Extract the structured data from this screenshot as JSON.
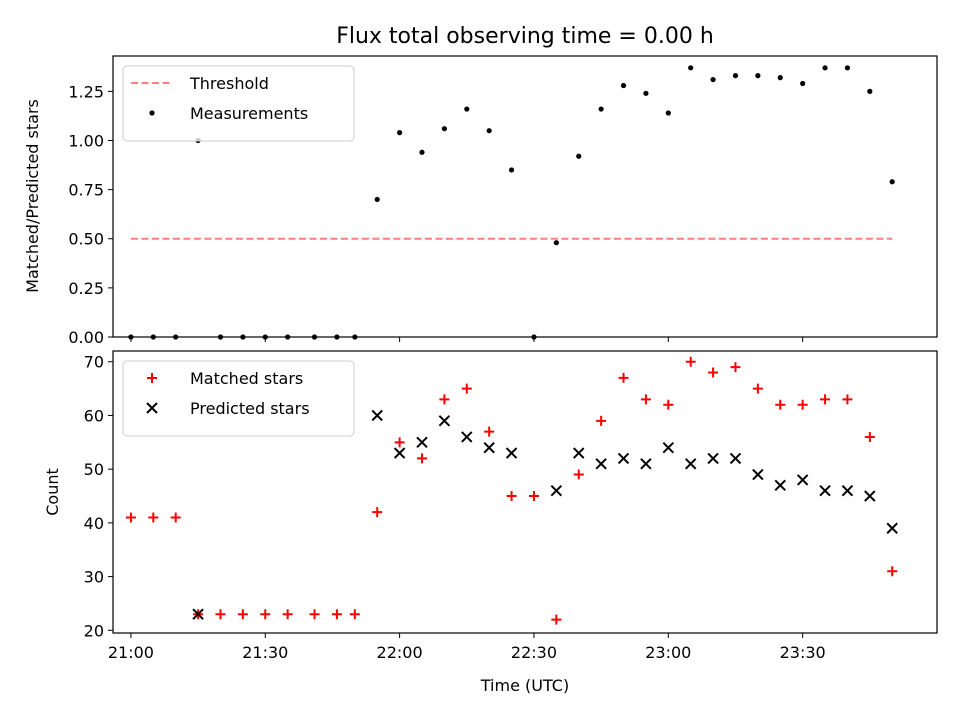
{
  "figure": {
    "title": "Flux total observing time = 0.00 h",
    "xlabel": "Time (UTC)"
  },
  "chart_data": [
    {
      "type": "scatter",
      "ylabel": "Matched/Predicted stars",
      "ylim": [
        0,
        1.43
      ],
      "yticks": [
        0.0,
        0.25,
        0.5,
        0.75,
        1.0,
        1.25
      ],
      "ytick_labels": [
        "0.00",
        "0.25",
        "0.50",
        "0.75",
        "1.00",
        "1.25"
      ],
      "xlim": [
        "20:56",
        "24:00"
      ],
      "legend_position": "top-left",
      "series": [
        {
          "name": "Threshold",
          "kind": "line",
          "style": "dashed",
          "color": "#ff7f7f",
          "x": [
            "21:00",
            "23:50"
          ],
          "y": [
            0.5,
            0.5
          ]
        },
        {
          "name": "Measurements",
          "kind": "points",
          "marker": "dot",
          "color": "#000000",
          "x": [
            "21:00",
            "21:05",
            "21:10",
            "21:15",
            "21:20",
            "21:25",
            "21:30",
            "21:35",
            "21:41",
            "21:46",
            "21:50",
            "21:55",
            "22:00",
            "22:05",
            "22:10",
            "22:15",
            "22:20",
            "22:25",
            "22:30",
            "22:35",
            "22:40",
            "22:45",
            "22:50",
            "22:55",
            "23:00",
            "23:05",
            "23:10",
            "23:15",
            "23:20",
            "23:25",
            "23:30",
            "23:35",
            "23:40",
            "23:45",
            "23:50"
          ],
          "y": [
            0,
            0,
            0,
            1.0,
            0,
            0,
            0,
            0,
            0,
            0,
            0,
            0.7,
            1.04,
            0.94,
            1.06,
            1.16,
            1.05,
            0.85,
            0,
            0.48,
            0.92,
            1.16,
            1.28,
            1.24,
            1.14,
            1.37,
            1.31,
            1.33,
            1.33,
            1.32,
            1.29,
            1.37,
            1.37,
            1.25,
            0.79
          ]
        }
      ]
    },
    {
      "type": "scatter",
      "ylabel": "Count",
      "ylim": [
        19.5,
        72
      ],
      "yticks": [
        20,
        30,
        40,
        50,
        60,
        70
      ],
      "ytick_labels": [
        "20",
        "30",
        "40",
        "50",
        "60",
        "70"
      ],
      "xlim": [
        "20:56",
        "24:00"
      ],
      "xticks": [
        "21:00",
        "21:30",
        "22:00",
        "22:30",
        "23:00",
        "23:30"
      ],
      "xtick_labels": [
        "21:00",
        "21:30",
        "22:00",
        "22:30",
        "23:00",
        "23:30"
      ],
      "legend_position": "top-left",
      "series": [
        {
          "name": "Matched stars",
          "marker": "plus",
          "color": "#ff0000",
          "x": [
            "21:00",
            "21:05",
            "21:10",
            "21:15",
            "21:20",
            "21:25",
            "21:30",
            "21:35",
            "21:41",
            "21:46",
            "21:50",
            "21:55",
            "22:00",
            "22:05",
            "22:10",
            "22:15",
            "22:20",
            "22:25",
            "22:30",
            "22:35",
            "22:40",
            "22:45",
            "22:50",
            "22:55",
            "23:00",
            "23:05",
            "23:10",
            "23:15",
            "23:20",
            "23:25",
            "23:30",
            "23:35",
            "23:40",
            "23:45",
            "23:50"
          ],
          "y": [
            41,
            41,
            41,
            23,
            23,
            23,
            23,
            23,
            23,
            23,
            23,
            42,
            55,
            52,
            63,
            65,
            57,
            45,
            45,
            22,
            49,
            59,
            67,
            63,
            62,
            70,
            68,
            69,
            65,
            62,
            62,
            63,
            63,
            56,
            31
          ]
        },
        {
          "name": "Predicted stars",
          "marker": "x",
          "color": "#000000",
          "x": [
            "21:15",
            "21:55",
            "22:00",
            "22:05",
            "22:10",
            "22:15",
            "22:20",
            "22:25",
            "22:35",
            "22:40",
            "22:45",
            "22:50",
            "22:55",
            "23:00",
            "23:05",
            "23:10",
            "23:15",
            "23:20",
            "23:25",
            "23:30",
            "23:35",
            "23:40",
            "23:45",
            "23:50"
          ],
          "y": [
            23,
            60,
            53,
            55,
            59,
            56,
            54,
            53,
            46,
            53,
            51,
            52,
            51,
            54,
            51,
            52,
            52,
            49,
            47,
            48,
            46,
            46,
            45,
            39
          ]
        }
      ]
    }
  ]
}
